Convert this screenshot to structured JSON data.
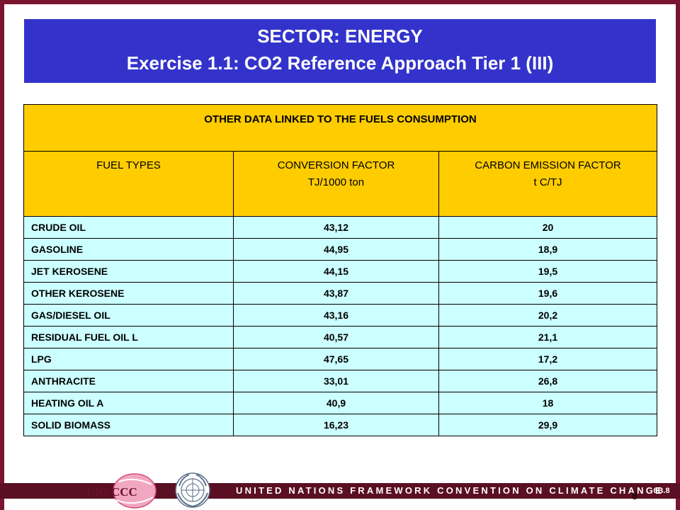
{
  "title": {
    "line1": "SECTOR: ENERGY",
    "line2": "Exercise 1.1: CO2 Reference Approach Tier 1 (III)"
  },
  "table": {
    "heading": "OTHER DATA LINKED TO THE FUELS CONSUMPTION",
    "columns": {
      "fuel_types": "FUEL TYPES",
      "conversion_factor": "CONVERSION FACTOR",
      "conversion_unit": "TJ/1000 ton",
      "carbon_factor": "CARBON EMISSION FACTOR",
      "carbon_unit": "t C/TJ"
    },
    "rows": [
      {
        "fuel": "CRUDE OIL",
        "conversion": "43,12",
        "carbon": "20"
      },
      {
        "fuel": "GASOLINE",
        "conversion": "44,95",
        "carbon": "18,9"
      },
      {
        "fuel": "JET KEROSENE",
        "conversion": "44,15",
        "carbon": "19,5"
      },
      {
        "fuel": "OTHER KEROSENE",
        "conversion": "43,87",
        "carbon": "19,6"
      },
      {
        "fuel": "GAS/DIESEL OIL",
        "conversion": "43,16",
        "carbon": "20,2"
      },
      {
        "fuel": "RESIDUAL FUEL OIL L",
        "conversion": "40,57",
        "carbon": "21,1"
      },
      {
        "fuel": "LPG",
        "conversion": "47,65",
        "carbon": "17,2"
      },
      {
        "fuel": "ANTHRACITE",
        "conversion": "33,01",
        "carbon": "26,8"
      },
      {
        "fuel": "HEATING OIL A",
        "conversion": "40,9",
        "carbon": "18"
      },
      {
        "fuel": "SOLID BIOMASS",
        "conversion": "16,23",
        "carbon": "29,9"
      }
    ]
  },
  "footer": {
    "organization": "UNITED NATIONS FRAMEWORK CONVENTION ON CLIMATE CHANGE",
    "logo_text": "UNFCCC",
    "slide_code": "6B.8",
    "page_number": "8",
    "logo_icon": "unfccc-logo-icon",
    "emblem_icon": "un-emblem-icon"
  },
  "colors": {
    "title_band": "#3333cc",
    "header_fill": "#ffcc00",
    "row_fill": "#ccffff",
    "frame": "#7a1530",
    "footer_stripe": "#5a0f23"
  }
}
